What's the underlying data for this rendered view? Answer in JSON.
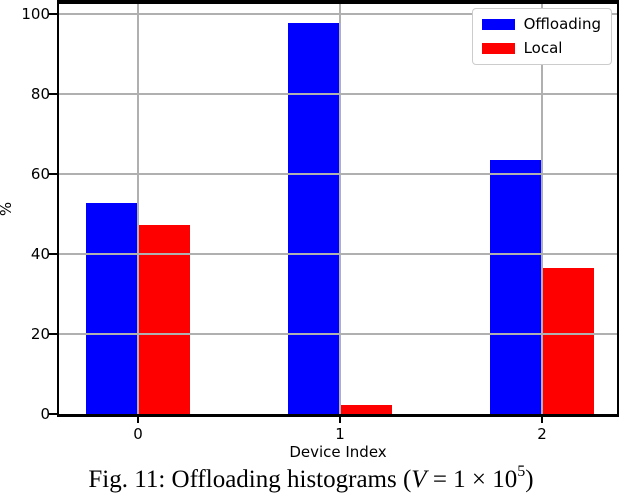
{
  "chart_data": {
    "type": "bar",
    "title": "",
    "xlabel": "Device Index",
    "ylabel": "%",
    "categories": [
      "0",
      "1",
      "2"
    ],
    "series": [
      {
        "name": "Offloading",
        "color": "#0000ff",
        "values": [
          52.8,
          97.7,
          63.5
        ]
      },
      {
        "name": "Local",
        "color": "#ff0000",
        "values": [
          47.2,
          2.3,
          36.5
        ]
      }
    ],
    "ylim": [
      0,
      102.5
    ],
    "yticks": [
      0,
      20,
      40,
      60,
      80,
      100
    ],
    "grid": true,
    "grid_color": "#b0b0b0",
    "grid_above_bars": true,
    "legend_position": "upper right"
  },
  "colors": {
    "offloading": "#0000ff",
    "local": "#ff0000",
    "gridline": "#b0b0b0",
    "spine": "#000000",
    "legend_border": "#cccccc",
    "background": "#ffffff"
  },
  "caption": {
    "full_text": "Fig. 11: Offloading histograms (V = 1 × 10⁵)",
    "prefix": "Fig. 11: Offloading histograms (",
    "variable": "V",
    "equals_part": " = 1 × 10",
    "exponent": "5",
    "suffix": ")"
  }
}
